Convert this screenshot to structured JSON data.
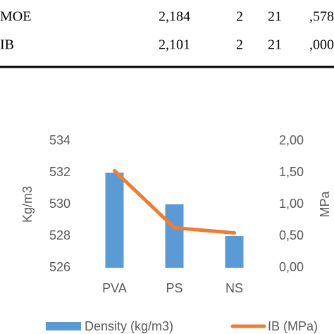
{
  "table": {
    "rows": [
      [
        "MOE",
        "2,184",
        "2",
        "21",
        ",578"
      ],
      [
        "IB",
        "2,101",
        "2",
        "21",
        ",000"
      ]
    ]
  },
  "chart_data": {
    "type": "bar_line",
    "categories": [
      "PVA",
      "PS",
      "NS"
    ],
    "y_label": "Kg/m3",
    "y2_label": "MPa",
    "ylim": [
      526,
      534
    ],
    "yticks": [
      526,
      528,
      530,
      532,
      534
    ],
    "y2lim": [
      0,
      2
    ],
    "y2ticks": [
      {
        "value": 0,
        "label": "0,00"
      },
      {
        "value": 0.5,
        "label": "0,50"
      },
      {
        "value": 1,
        "label": "1,00"
      },
      {
        "value": 1.5,
        "label": "1,50"
      },
      {
        "value": 2,
        "label": "2,00"
      }
    ],
    "series": [
      {
        "name": "Density (kg/m3)",
        "type": "bar",
        "color": "#5b9bd5",
        "values": [
          532,
          530,
          528
        ]
      },
      {
        "name": "IB (MPa)",
        "type": "line",
        "axis": "y2",
        "color": "#ed7d31",
        "values": [
          1.53,
          0.63,
          0.55
        ]
      }
    ]
  }
}
